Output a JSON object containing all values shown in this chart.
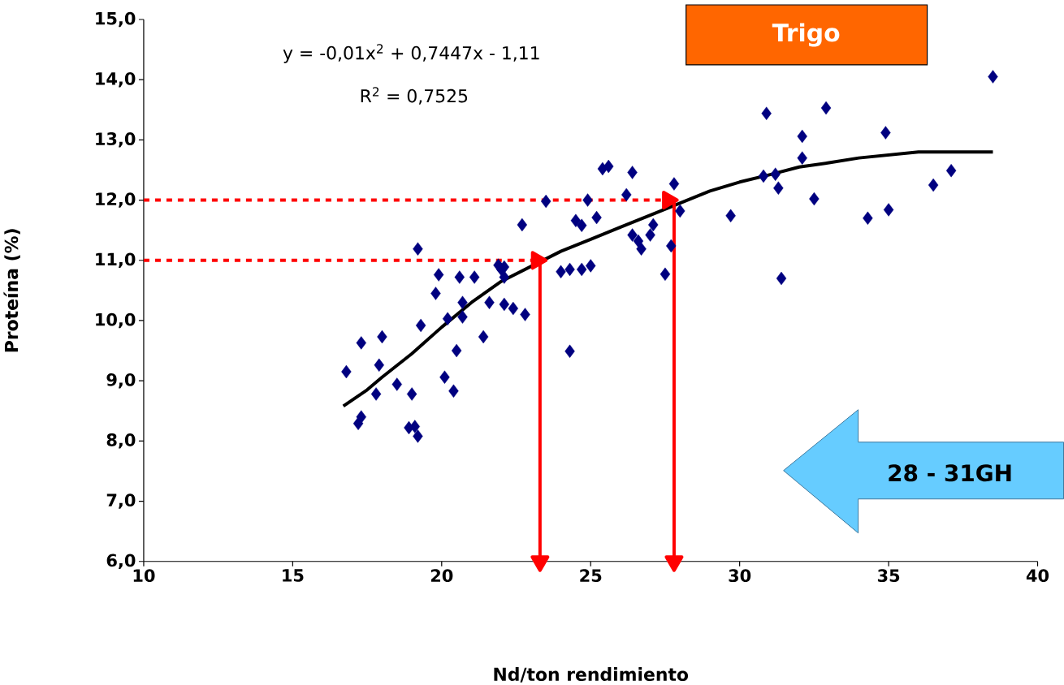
{
  "chart_data": {
    "type": "scatter",
    "xlabel": "Nd/ton rendimiento",
    "ylabel": "Proteína (%)",
    "xlim": [
      10,
      40
    ],
    "ylim": [
      6,
      15
    ],
    "xticks": [
      10,
      15,
      20,
      25,
      30,
      35,
      40
    ],
    "yticks": [
      {
        "value": 6,
        "label": "6,0"
      },
      {
        "value": 7,
        "label": "7,0"
      },
      {
        "value": 8,
        "label": "8,0"
      },
      {
        "value": 9,
        "label": "9,0"
      },
      {
        "value": 10,
        "label": "10,0"
      },
      {
        "value": 11,
        "label": "11,0"
      },
      {
        "value": 12,
        "label": "12,0"
      },
      {
        "value": 13,
        "label": "13,0"
      },
      {
        "value": 14,
        "label": "14,0"
      },
      {
        "value": 15,
        "label": "15,0"
      }
    ],
    "marker": "diamond",
    "annotations": [
      "Trigo",
      "y = -0,01x$^{2}$ + 0,7447x - 1,11",
      "R$^{2}$ = 0,7525",
      "28 - 31GH"
    ],
    "series": [
      {
        "color": "#000080",
        "x": [
          16.8,
          17.3,
          17.2,
          17.3,
          18.0,
          17.9,
          17.8,
          18.5,
          19.0,
          18.9,
          19.1,
          19.2,
          19.2,
          19.3,
          19.8,
          19.9,
          20.1,
          20.2,
          20.4,
          20.5,
          20.6,
          20.7,
          20.7,
          21.1,
          21.4,
          21.6,
          21.9,
          22.1,
          22.1,
          22.1,
          22.0,
          22.4,
          22.7,
          22.8,
          23.5,
          24.0,
          24.3,
          24.7,
          25.0,
          24.5,
          24.7,
          25.2,
          24.9,
          25.4,
          25.6,
          26.4,
          26.2,
          27.8,
          28.0,
          27.1,
          26.4,
          26.7,
          27.0,
          27.7,
          27.5,
          26.6,
          24.3,
          30.9,
          32.9,
          38.5,
          32.1,
          32.1,
          34.9,
          30.8,
          31.2,
          31.3,
          32.5,
          29.7,
          34.3,
          35.0,
          36.5,
          37.1,
          31.4
        ],
        "values": [
          9.15,
          9.63,
          8.29,
          8.4,
          9.73,
          9.26,
          8.78,
          8.94,
          8.78,
          8.22,
          8.24,
          8.08,
          11.19,
          9.92,
          10.45,
          10.76,
          9.06,
          10.03,
          8.83,
          9.5,
          10.72,
          10.3,
          10.06,
          10.72,
          9.73,
          10.3,
          10.92,
          10.72,
          10.89,
          10.27,
          10.85,
          10.2,
          11.59,
          10.1,
          11.98,
          10.81,
          10.85,
          10.85,
          10.91,
          11.66,
          11.58,
          11.71,
          12.0,
          12.52,
          12.56,
          12.46,
          12.09,
          12.27,
          11.82,
          11.59,
          11.42,
          11.19,
          11.42,
          11.24,
          10.77,
          11.32,
          9.49,
          13.44,
          13.53,
          14.05,
          13.06,
          12.7,
          13.12,
          12.4,
          12.43,
          12.2,
          12.02,
          11.74,
          11.7,
          11.84,
          12.25,
          12.49,
          10.7
        ]
      },
      {
        "type": "line",
        "color": "#000000",
        "marker": "none",
        "x": [
          16.7,
          17.5,
          18.0,
          19.0,
          20.0,
          21.0,
          22.0,
          23.0,
          24.0,
          25.0,
          26.0,
          27.0,
          28.0,
          29.0,
          30.0,
          31.0,
          32.0,
          33.0,
          34.0,
          35.0,
          36.0,
          38.5
        ],
        "values": [
          8.58,
          8.85,
          9.06,
          9.45,
          9.89,
          10.3,
          10.65,
          10.9,
          11.15,
          11.35,
          11.55,
          11.75,
          11.95,
          12.15,
          12.3,
          12.42,
          12.55,
          12.62,
          12.7,
          12.75,
          12.8,
          12.8
        ]
      },
      {
        "type": "line",
        "color": "#ff0000",
        "marker": "triangle",
        "line_style": "dotted",
        "x": [
          10,
          23.2
        ],
        "values": [
          11,
          11
        ]
      },
      {
        "type": "line",
        "color": "#ff0000",
        "marker": "triangle",
        "line_style": "dotted",
        "x": [
          10,
          27.6
        ],
        "values": [
          12,
          12
        ]
      },
      {
        "type": "line",
        "color": "#ff0000",
        "marker": "triangle",
        "line_style": "solid",
        "x": [
          23.3,
          23.3
        ],
        "values": [
          10.95,
          6
        ]
      },
      {
        "type": "line",
        "color": "#ff0000",
        "marker": "triangle",
        "line_style": "solid",
        "x": [
          27.8,
          27.8
        ],
        "values": [
          12,
          6
        ]
      }
    ]
  }
}
